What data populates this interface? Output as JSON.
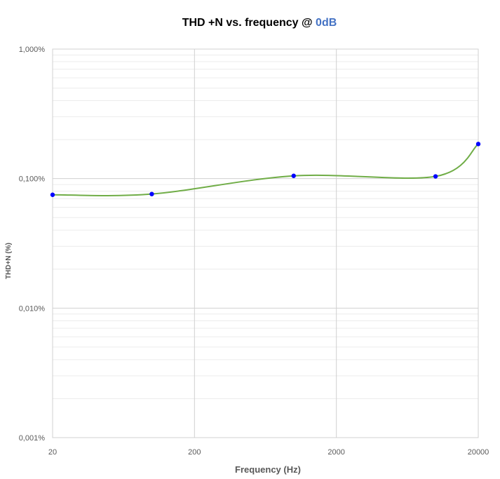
{
  "chart_data": {
    "type": "line",
    "title": "THD +N vs. frequency @ ",
    "title_highlight": "0dB",
    "title_highlight_color": "#4472C4",
    "xlabel": "Frequency (Hz)",
    "ylabel": "THD+N (%)",
    "x_scale": "log",
    "y_scale": "log",
    "xlim": [
      20,
      20000
    ],
    "ylim": [
      0.001,
      1
    ],
    "x_ticks": [
      20,
      200,
      2000,
      20000
    ],
    "x_tick_labels": [
      "20",
      "200",
      "2000",
      "20000"
    ],
    "y_ticks": [
      0.001,
      0.01,
      0.1,
      1
    ],
    "y_tick_labels": [
      "0,001%",
      "0,010%",
      "0,100%",
      "1,000%"
    ],
    "grid": true,
    "series": [
      {
        "x": [
          20,
          100,
          1000,
          10000,
          20000
        ],
        "y": [
          0.075,
          0.076,
          0.105,
          0.104,
          0.185
        ],
        "line_color": "#70AD47",
        "marker_color": "#0000FF",
        "smooth": true
      }
    ]
  }
}
